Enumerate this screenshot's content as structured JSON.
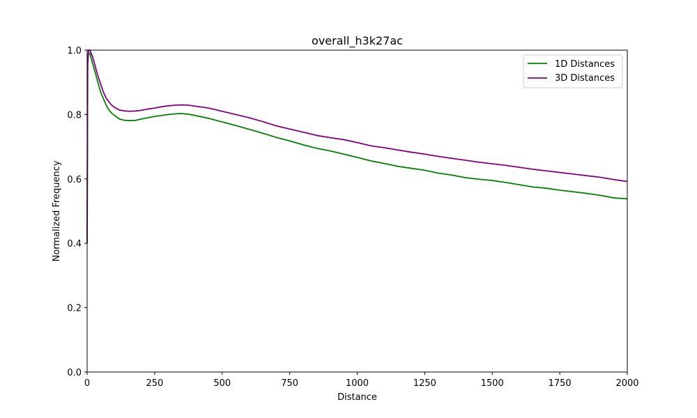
{
  "chart_data": {
    "type": "line",
    "title": "overall_h3k27ac",
    "xlabel": "Distance",
    "ylabel": "Normalized Frequency",
    "xlim": [
      0,
      2000
    ],
    "ylim": [
      0,
      1.0
    ],
    "xticks": [
      0,
      250,
      500,
      750,
      1000,
      1250,
      1500,
      1750,
      2000
    ],
    "yticks": [
      0.0,
      0.2,
      0.4,
      0.6,
      0.8,
      1.0
    ],
    "xtick_labels": [
      "0",
      "250",
      "500",
      "750",
      "1000",
      "1250",
      "1500",
      "1750",
      "2000"
    ],
    "ytick_labels": [
      "0.0",
      "0.2",
      "0.4",
      "0.6",
      "0.8",
      "1.0"
    ],
    "grid": false,
    "legend_position": "top-right",
    "series": [
      {
        "name": "1D Distances",
        "color": "#008000",
        "x": [
          0,
          2,
          5,
          10,
          20,
          30,
          40,
          50,
          60,
          70,
          80,
          90,
          100,
          110,
          120,
          140,
          160,
          180,
          200,
          225,
          250,
          275,
          300,
          325,
          350,
          375,
          400,
          450,
          500,
          550,
          600,
          650,
          700,
          750,
          800,
          850,
          900,
          950,
          1000,
          1050,
          1100,
          1150,
          1200,
          1250,
          1300,
          1350,
          1400,
          1450,
          1500,
          1550,
          1600,
          1650,
          1700,
          1750,
          1800,
          1850,
          1900,
          1950,
          2000
        ],
        "y": [
          0.4,
          0.95,
          0.99,
          0.99,
          0.96,
          0.93,
          0.9,
          0.87,
          0.85,
          0.83,
          0.815,
          0.805,
          0.798,
          0.792,
          0.786,
          0.782,
          0.781,
          0.782,
          0.786,
          0.79,
          0.794,
          0.797,
          0.8,
          0.802,
          0.803,
          0.801,
          0.797,
          0.788,
          0.777,
          0.766,
          0.754,
          0.742,
          0.729,
          0.718,
          0.706,
          0.695,
          0.687,
          0.677,
          0.667,
          0.656,
          0.648,
          0.639,
          0.633,
          0.627,
          0.618,
          0.612,
          0.604,
          0.599,
          0.595,
          0.589,
          0.582,
          0.575,
          0.571,
          0.565,
          0.56,
          0.555,
          0.549,
          0.541,
          0.538
        ]
      },
      {
        "name": "3D Distances",
        "color": "#800080",
        "x": [
          0,
          2,
          5,
          10,
          20,
          30,
          40,
          50,
          60,
          70,
          80,
          90,
          100,
          110,
          120,
          140,
          160,
          180,
          200,
          225,
          250,
          275,
          300,
          325,
          350,
          375,
          400,
          450,
          500,
          550,
          600,
          650,
          700,
          750,
          800,
          850,
          900,
          950,
          1000,
          1050,
          1100,
          1150,
          1200,
          1250,
          1300,
          1350,
          1400,
          1450,
          1500,
          1550,
          1600,
          1650,
          1700,
          1750,
          1800,
          1850,
          1900,
          1950,
          2000
        ],
        "y": [
          0.4,
          0.96,
          1.0,
          1.0,
          0.98,
          0.95,
          0.92,
          0.895,
          0.87,
          0.852,
          0.84,
          0.83,
          0.823,
          0.818,
          0.814,
          0.811,
          0.81,
          0.811,
          0.813,
          0.817,
          0.82,
          0.824,
          0.827,
          0.829,
          0.83,
          0.829,
          0.826,
          0.82,
          0.81,
          0.8,
          0.79,
          0.778,
          0.765,
          0.755,
          0.745,
          0.735,
          0.728,
          0.722,
          0.713,
          0.703,
          0.697,
          0.69,
          0.683,
          0.677,
          0.67,
          0.664,
          0.658,
          0.652,
          0.647,
          0.642,
          0.636,
          0.63,
          0.625,
          0.62,
          0.615,
          0.61,
          0.605,
          0.598,
          0.592
        ]
      }
    ]
  }
}
